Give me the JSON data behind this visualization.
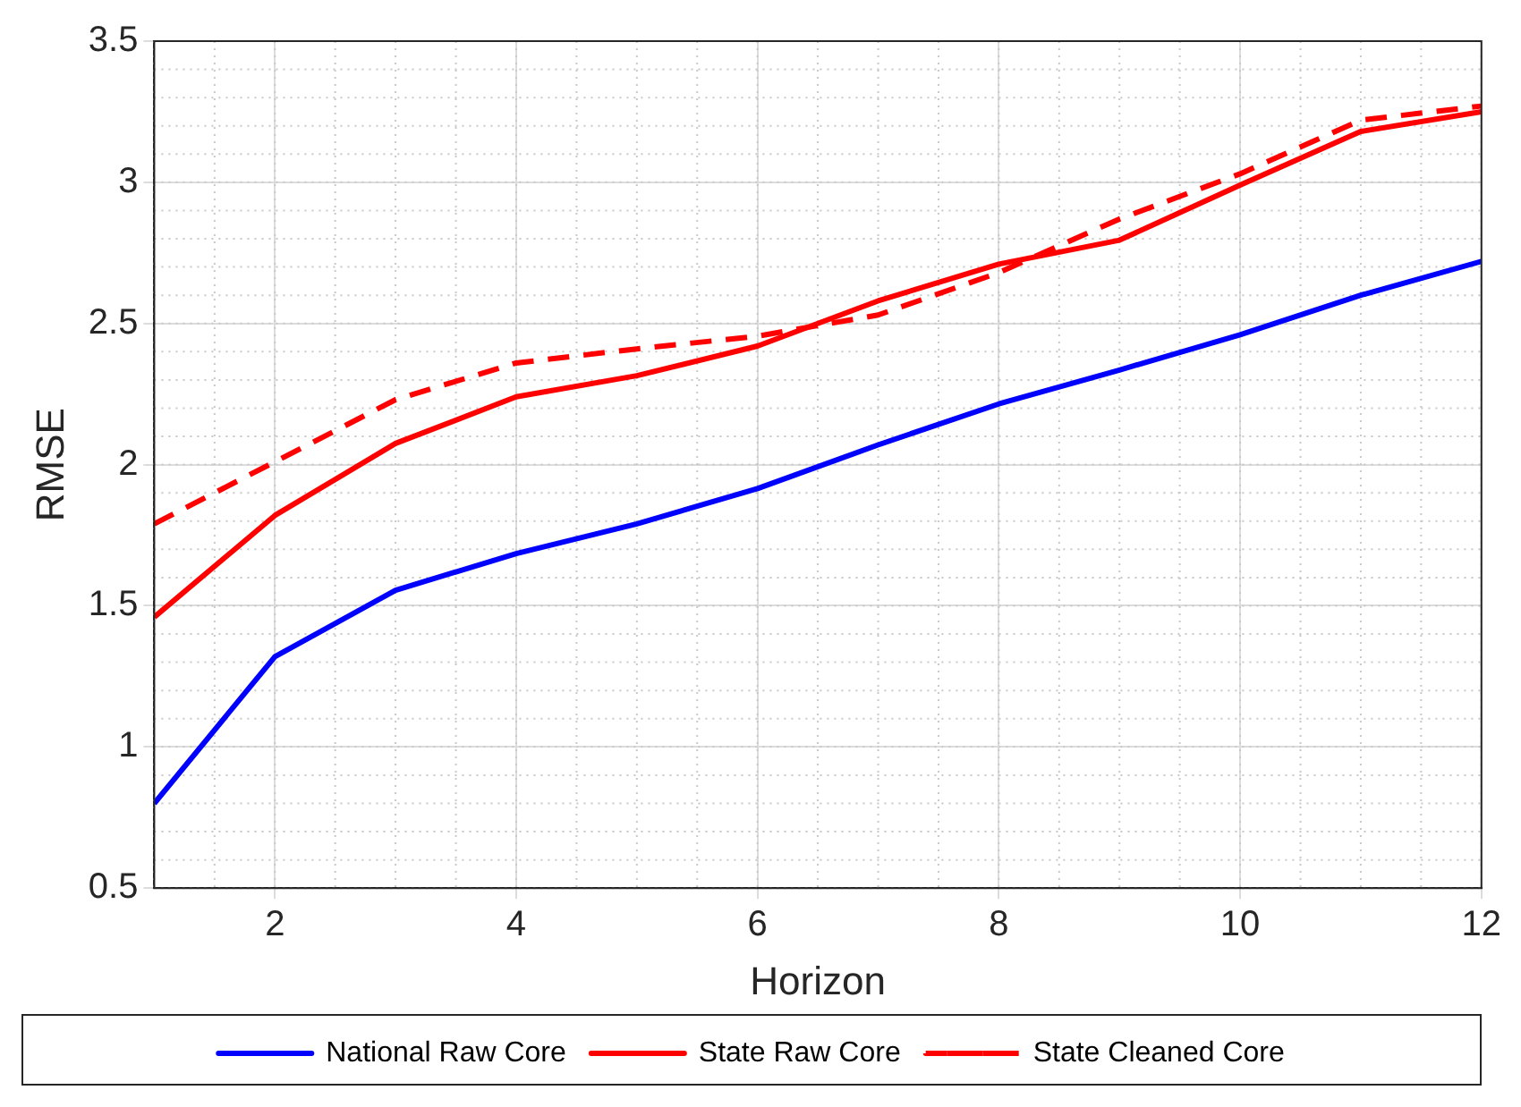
{
  "chart_data": {
    "type": "line",
    "xlabel": "Horizon",
    "ylabel": "RMSE",
    "x": [
      1,
      2,
      3,
      4,
      5,
      6,
      7,
      8,
      9,
      10,
      11,
      12
    ],
    "xlim": [
      1,
      12
    ],
    "xticks": [
      2,
      4,
      6,
      8,
      10,
      12
    ],
    "ylim": [
      0.5,
      3.5
    ],
    "yticks": [
      0.5,
      1,
      1.5,
      2,
      2.5,
      3,
      3.5
    ],
    "grid": true,
    "legend": "bottom",
    "marker": "none",
    "series": [
      {
        "name": "National Raw Core",
        "color": "#0000ff",
        "line_style": "solid",
        "values": [
          0.8,
          1.32,
          1.555,
          1.685,
          1.79,
          1.915,
          2.07,
          2.215,
          2.335,
          2.46,
          2.6,
          2.72
        ]
      },
      {
        "name": "State Raw Core",
        "color": "#ff0000",
        "line_style": "solid",
        "values": [
          1.46,
          1.82,
          2.075,
          2.24,
          2.315,
          2.42,
          2.58,
          2.71,
          2.795,
          2.99,
          3.18,
          3.25
        ]
      },
      {
        "name": "State Cleaned Core",
        "color": "#ff0000",
        "line_style": "dashed",
        "values": [
          1.79,
          2.01,
          2.23,
          2.36,
          2.41,
          2.455,
          2.53,
          2.68,
          2.87,
          3.03,
          3.22,
          3.27
        ]
      }
    ]
  }
}
